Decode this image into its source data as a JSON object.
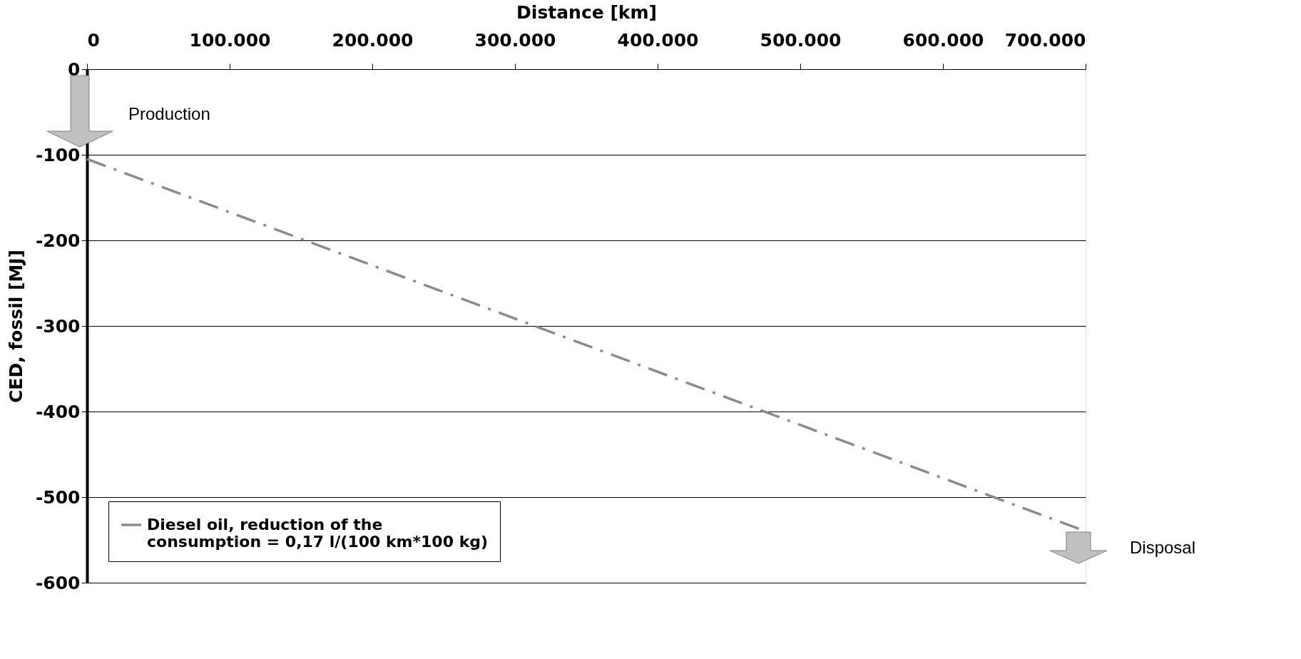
{
  "chart_data": {
    "type": "line",
    "xlabel": "Distance [km]",
    "ylabel": "CED, fossil [MJ]",
    "x": [
      0,
      700000
    ],
    "series": [
      {
        "name": "Diesel oil, reduction of the consumption = 0,17 l/(100 km*100 kg)",
        "color": "#8c8c8c",
        "values": [
          -105,
          -540
        ]
      }
    ],
    "xlim": [
      0,
      700000
    ],
    "xticks": [
      0,
      {
        "value": 100000,
        "label": "100.000"
      },
      {
        "value": 200000,
        "label": "200.000"
      },
      {
        "value": 300000,
        "label": "300.000"
      },
      {
        "value": 400000,
        "label": "400.000"
      },
      {
        "value": 500000,
        "label": "500.000"
      },
      {
        "value": 600000,
        "label": "600.000"
      },
      {
        "value": 700000,
        "label": "700.000"
      }
    ],
    "ylim": [
      -600,
      0
    ],
    "yticks": [
      -600,
      -500,
      -400,
      -300,
      -200,
      -100,
      0
    ],
    "annotations": [
      "Production",
      "Disposal"
    ],
    "grid": "y",
    "legend": "bottom left",
    "line_style": "dashed",
    "marker": "none"
  }
}
